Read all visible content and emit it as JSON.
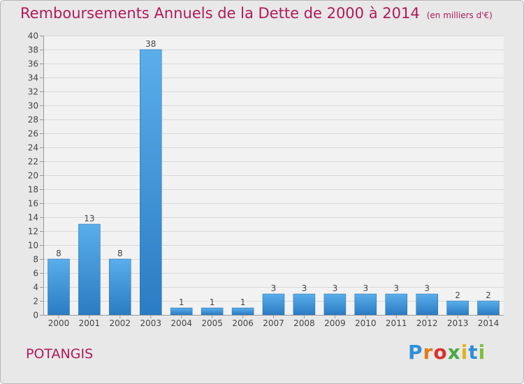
{
  "title": "Remboursements Annuels de la Dette de 2000 à 2014",
  "subtitle": "(en milliers d'€)",
  "place": "POTANGIS",
  "logo": {
    "text": "Proxiti",
    "letters": [
      "P",
      "r",
      "o",
      "x",
      "i",
      "t",
      "i"
    ]
  },
  "colors": {
    "title": "#b0195a",
    "bar_light": "#5aaeea",
    "bar_dark": "#2a7cc4",
    "plot_background": "#f2f2f2",
    "grid": "#d8d8d8"
  },
  "chart_data": {
    "type": "bar",
    "title": "Remboursements Annuels de la Dette de 2000 à 2014",
    "subtitle": "(en milliers d'€)",
    "xlabel": "",
    "ylabel": "",
    "categories": [
      "2000",
      "2001",
      "2002",
      "2003",
      "2004",
      "2005",
      "2006",
      "2007",
      "2008",
      "2009",
      "2010",
      "2011",
      "2012",
      "2013",
      "2014"
    ],
    "values": [
      8,
      13,
      8,
      38,
      1,
      1,
      1,
      3,
      3,
      3,
      3,
      3,
      3,
      2,
      2
    ],
    "value_labels": [
      "8",
      "13",
      "8",
      "38",
      "1",
      "1",
      "1",
      "3",
      "3",
      "3",
      "3",
      "3",
      "3",
      "2",
      "2"
    ],
    "ylim": [
      0,
      40
    ],
    "yticks": [
      "0",
      "2",
      "4",
      "6",
      "8",
      "10",
      "12",
      "14",
      "16",
      "18",
      "20",
      "22",
      "24",
      "26",
      "28",
      "30",
      "32",
      "34",
      "36",
      "38",
      "40"
    ],
    "grid": true,
    "legend": "none"
  }
}
